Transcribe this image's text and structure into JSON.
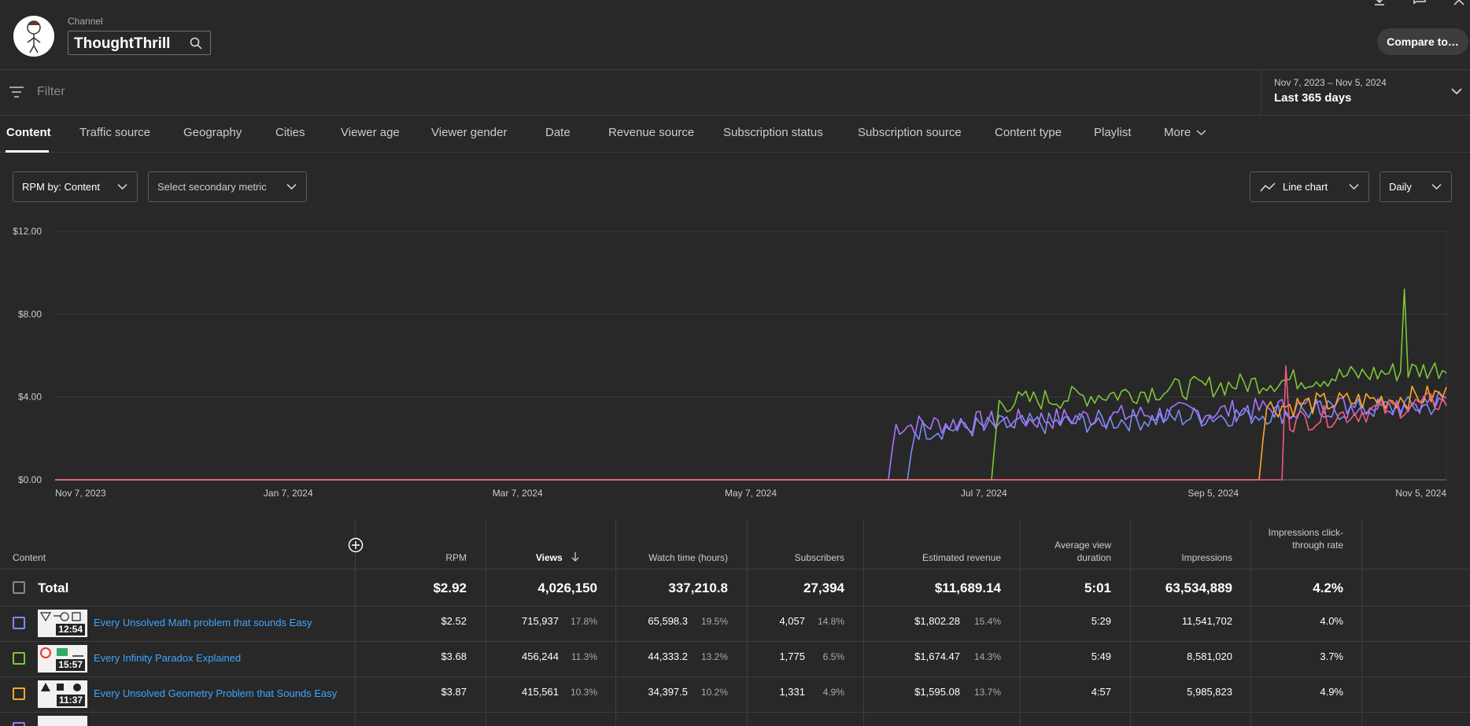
{
  "header": {
    "channel_label": "Channel",
    "channel_name": "ThoughtThrill",
    "compare_label": "Compare to…"
  },
  "filter": {
    "placeholder": "Filter"
  },
  "date_range": {
    "range": "Nov 7, 2023 – Nov 5, 2024",
    "label": "Last 365 days"
  },
  "tabs": [
    {
      "label": "Content"
    },
    {
      "label": "Traffic source"
    },
    {
      "label": "Geography"
    },
    {
      "label": "Cities"
    },
    {
      "label": "Viewer age"
    },
    {
      "label": "Viewer gender"
    },
    {
      "label": "Date"
    },
    {
      "label": "Revenue source"
    },
    {
      "label": "Subscription status"
    },
    {
      "label": "Subscription source"
    },
    {
      "label": "Content type"
    },
    {
      "label": "Playlist"
    },
    {
      "label": "More"
    }
  ],
  "controls": {
    "primary_metric": "RPM by: Content",
    "secondary_metric": "Select secondary metric",
    "chart_type": "Line chart",
    "granularity": "Daily"
  },
  "chart_data": {
    "type": "line",
    "ylim": [
      0,
      12
    ],
    "y_ticks": [
      "$12.00",
      "$8.00",
      "$4.00",
      "$0.00"
    ],
    "x_ticks": [
      "Nov 7, 2023",
      "Jan 7, 2024",
      "Mar 7, 2024",
      "May 7, 2024",
      "Jul 7, 2024",
      "Sep 5, 2024",
      "Nov 5, 2024"
    ],
    "series": [
      {
        "color": "#a974ff",
        "start_day": 219,
        "level": 2.6,
        "end_level": 3.8,
        "spike_day": 0,
        "spike": 0
      },
      {
        "color": "#7b8cf7",
        "start_day": 224,
        "level": 2.4,
        "end_level": 3.6,
        "spike_day": 0,
        "spike": 0
      },
      {
        "color": "#7cc639",
        "start_day": 246,
        "level": 3.7,
        "end_level": 5.4,
        "spike_day": 353,
        "spike": 9.2
      },
      {
        "color": "#ffa726",
        "start_day": 316,
        "level": 3.5,
        "end_level": 4.1,
        "spike_day": 0,
        "spike": 0
      },
      {
        "color": "#ef5b7c",
        "start_day": 322,
        "level": 2.8,
        "end_level": 3.8,
        "spike_day": 322,
        "spike": 5.5
      }
    ]
  },
  "table": {
    "headers": {
      "content": "Content",
      "rpm": "RPM",
      "views": "Views",
      "watch_time": "Watch time (hours)",
      "subscribers": "Subscribers",
      "revenue": "Estimated revenue",
      "avg_duration": "Average view duration",
      "impressions": "Impressions",
      "ctr": "Impressions click-through rate"
    },
    "total": {
      "label": "Total",
      "rpm": "$2.92",
      "views": "4,026,150",
      "watch_time": "337,210.8",
      "subscribers": "27,394",
      "revenue": "$11,689.14",
      "avg_duration": "5:01",
      "impressions": "63,534,889",
      "ctr": "4.2%"
    },
    "rows": [
      {
        "title": "Every Unsolved Math problem that sounds Easy",
        "duration": "12:54",
        "color": "#7b8cf7",
        "rpm": "$2.52",
        "views": "715,937",
        "views_pct": "17.8%",
        "watch_time": "65,598.3",
        "watch_pct": "19.5%",
        "subscribers": "4,057",
        "subs_pct": "14.8%",
        "revenue": "$1,802.28",
        "rev_pct": "15.4%",
        "avg_duration": "5:29",
        "impressions": "11,541,702",
        "ctr": "4.0%"
      },
      {
        "title": "Every Infinity Paradox Explained",
        "duration": "15:57",
        "color": "#7cc639",
        "rpm": "$3.68",
        "views": "456,244",
        "views_pct": "11.3%",
        "watch_time": "44,333.2",
        "watch_pct": "13.2%",
        "subscribers": "1,775",
        "subs_pct": "6.5%",
        "revenue": "$1,674.47",
        "rev_pct": "14.3%",
        "avg_duration": "5:49",
        "impressions": "8,581,020",
        "ctr": "3.7%"
      },
      {
        "title": "Every Unsolved Geometry Problem that Sounds Easy",
        "duration": "11:37",
        "color": "#ffa726",
        "rpm": "$3.87",
        "views": "415,561",
        "views_pct": "10.3%",
        "watch_time": "34,397.5",
        "watch_pct": "10.2%",
        "subscribers": "1,331",
        "subs_pct": "4.9%",
        "revenue": "$1,595.08",
        "rev_pct": "13.7%",
        "avg_duration": "4:57",
        "impressions": "5,985,823",
        "ctr": "4.9%"
      }
    ]
  }
}
